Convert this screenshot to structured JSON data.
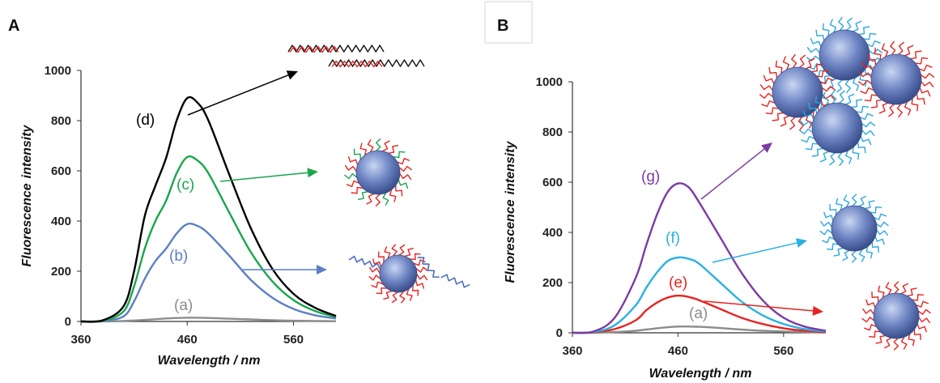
{
  "colors": {
    "a": "#8c8c8c",
    "b": "#5b7fc4",
    "c": "#1aa64b",
    "d": "#000000",
    "e": "#e8231f",
    "f": "#2ab1e3",
    "g": "#7b3ba3",
    "dna_red": "#e8231f",
    "dna_black": "#111111",
    "dna_green": "#1aa64b",
    "dna_blue": "#4a6fb8",
    "dna_cyan": "#2aa8e0",
    "sphere": "#6f86c4"
  },
  "chart_data": [
    {
      "panel": "A",
      "type": "line",
      "xlabel_italic": "Wavelength",
      "xlabel_unit": " / nm",
      "ylabel_a": "Fluorescence",
      "ylabel_b": "intensity",
      "xlim": [
        360,
        600
      ],
      "ylim": [
        0,
        1000
      ],
      "xticks": [
        360,
        460,
        560
      ],
      "yticks": [
        0,
        200,
        400,
        600,
        800,
        1000
      ],
      "series": [
        {
          "name": "(a)",
          "color_key": "a",
          "x": [
            360,
            380,
            400,
            420,
            440,
            460,
            480,
            500,
            520,
            540,
            560,
            580,
            600
          ],
          "y": [
            0,
            0,
            2,
            6,
            12,
            15,
            14,
            11,
            8,
            5,
            3,
            2,
            1
          ]
        },
        {
          "name": "(b)",
          "color_key": "b",
          "x": [
            360,
            380,
            400,
            410,
            420,
            430,
            440,
            450,
            460,
            470,
            480,
            500,
            520,
            540,
            560,
            580,
            600
          ],
          "y": [
            0,
            2,
            20,
            80,
            170,
            240,
            290,
            350,
            388,
            380,
            350,
            260,
            165,
            95,
            50,
            25,
            12
          ]
        },
        {
          "name": "(c)",
          "color_key": "c",
          "x": [
            360,
            380,
            400,
            410,
            420,
            430,
            440,
            450,
            460,
            470,
            480,
            500,
            520,
            540,
            560,
            580,
            600
          ],
          "y": [
            0,
            3,
            40,
            140,
            290,
            400,
            480,
            590,
            655,
            640,
            590,
            430,
            275,
            160,
            85,
            42,
            18
          ]
        },
        {
          "name": "(d)",
          "color_key": "d",
          "x": [
            360,
            380,
            400,
            410,
            420,
            430,
            440,
            450,
            460,
            470,
            480,
            500,
            520,
            540,
            560,
            580,
            600
          ],
          "y": [
            0,
            4,
            60,
            200,
            420,
            540,
            650,
            800,
            890,
            870,
            800,
            580,
            370,
            210,
            110,
            55,
            22
          ]
        }
      ]
    },
    {
      "panel": "B",
      "type": "line",
      "xlabel_italic": "Wavelength",
      "xlabel_unit": " / nm",
      "ylabel_a": "Fluorescence",
      "ylabel_b": "intensity",
      "xlim": [
        360,
        600
      ],
      "ylim": [
        0,
        1000
      ],
      "xticks": [
        360,
        460,
        560
      ],
      "yticks": [
        0,
        200,
        400,
        600,
        800,
        1000
      ],
      "series": [
        {
          "name": "(a)",
          "color_key": "a",
          "x": [
            360,
            380,
            400,
            420,
            440,
            460,
            480,
            500,
            520,
            540,
            560,
            580,
            600
          ],
          "y": [
            0,
            0,
            3,
            8,
            18,
            25,
            24,
            19,
            13,
            8,
            5,
            3,
            1
          ]
        },
        {
          "name": "(e)",
          "color_key": "e",
          "x": [
            360,
            380,
            400,
            420,
            430,
            440,
            450,
            460,
            470,
            480,
            500,
            520,
            540,
            560,
            580,
            600
          ],
          "y": [
            0,
            2,
            15,
            50,
            90,
            120,
            140,
            148,
            143,
            130,
            95,
            60,
            35,
            18,
            8,
            3
          ]
        },
        {
          "name": "(f)",
          "color_key": "f",
          "x": [
            360,
            380,
            400,
            420,
            430,
            440,
            450,
            460,
            470,
            480,
            500,
            520,
            540,
            560,
            580,
            600
          ],
          "y": [
            0,
            3,
            30,
            110,
            180,
            240,
            285,
            300,
            295,
            275,
            200,
            125,
            70,
            35,
            15,
            5
          ]
        },
        {
          "name": "(g)",
          "color_key": "g",
          "x": [
            360,
            380,
            400,
            420,
            430,
            440,
            450,
            460,
            470,
            480,
            500,
            520,
            540,
            560,
            580,
            600
          ],
          "y": [
            0,
            5,
            60,
            220,
            350,
            470,
            560,
            595,
            580,
            520,
            380,
            240,
            130,
            60,
            25,
            8
          ]
        }
      ]
    }
  ],
  "panels": {
    "A": {
      "label": "A"
    },
    "B": {
      "label": "B"
    }
  }
}
